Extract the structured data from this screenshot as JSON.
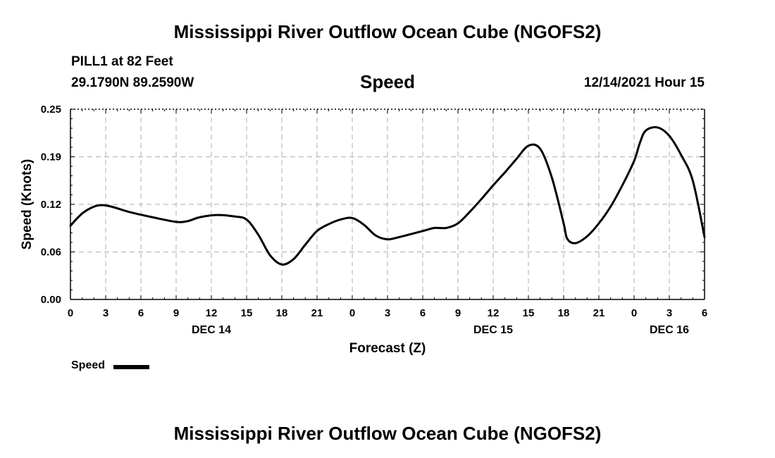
{
  "header": {
    "title": "Mississippi River Outflow Ocean Cube (NGOFS2)",
    "station": "PILL1 at 82 Feet",
    "coords": "29.1790N  89.2590W",
    "chart_title": "Speed",
    "datetime": "12/14/2021 Hour 15"
  },
  "footer": {
    "title": "Mississippi River Outflow Ocean Cube (NGOFS2)"
  },
  "legend": {
    "label": "Speed",
    "color": "#000000"
  },
  "chart_data": {
    "type": "line",
    "title": "Speed",
    "xlabel": "Forecast (Z)",
    "ylabel": "Speed (Knots)",
    "x_unit": "hours from Dec 14 00Z",
    "xlim": [
      0,
      54
    ],
    "ylim": [
      0,
      0.25
    ],
    "grid": true,
    "x_ticks": [
      0,
      3,
      6,
      9,
      12,
      15,
      18,
      21,
      24,
      27,
      30,
      33,
      36,
      39,
      42,
      45,
      48,
      51,
      54
    ],
    "x_tick_labels": [
      "0",
      "3",
      "6",
      "9",
      "12",
      "15",
      "18",
      "21",
      "0",
      "3",
      "6",
      "9",
      "12",
      "15",
      "18",
      "21",
      "0",
      "3",
      "6"
    ],
    "date_labels": [
      {
        "x": 12,
        "label": "DEC 14"
      },
      {
        "x": 36,
        "label": "DEC 15"
      },
      {
        "x": 51,
        "label": "DEC 16"
      }
    ],
    "y_ticks": [
      0.0,
      0.0625,
      0.125,
      0.1875,
      0.25
    ],
    "y_tick_labels": [
      "0.00",
      "0.06",
      "0.12",
      "0.19",
      "0.25"
    ],
    "legend_position": "bottom-left",
    "series": [
      {
        "name": "Speed",
        "color": "#000000",
        "x": [
          0,
          1,
          2,
          2.7,
          3.5,
          5,
          7,
          9,
          10,
          11,
          12.5,
          14,
          15,
          16,
          17,
          18,
          19,
          20,
          21,
          22,
          23,
          24,
          25,
          26,
          27,
          28,
          30,
          31,
          32,
          33,
          34,
          35,
          36,
          37,
          38,
          39,
          40,
          41,
          42,
          42.3,
          43,
          44,
          45,
          46,
          47,
          48,
          48.5,
          49,
          50,
          51,
          52,
          53,
          54
        ],
        "values": [
          0.097,
          0.113,
          0.122,
          0.124,
          0.122,
          0.115,
          0.108,
          0.102,
          0.103,
          0.108,
          0.111,
          0.109,
          0.105,
          0.085,
          0.058,
          0.046,
          0.053,
          0.072,
          0.09,
          0.099,
          0.105,
          0.107,
          0.098,
          0.084,
          0.079,
          0.082,
          0.09,
          0.094,
          0.094,
          0.1,
          0.115,
          0.132,
          0.15,
          0.167,
          0.185,
          0.202,
          0.198,
          0.16,
          0.1,
          0.08,
          0.074,
          0.083,
          0.1,
          0.122,
          0.15,
          0.182,
          0.206,
          0.222,
          0.226,
          0.215,
          0.19,
          0.156,
          0.082
        ]
      }
    ]
  }
}
